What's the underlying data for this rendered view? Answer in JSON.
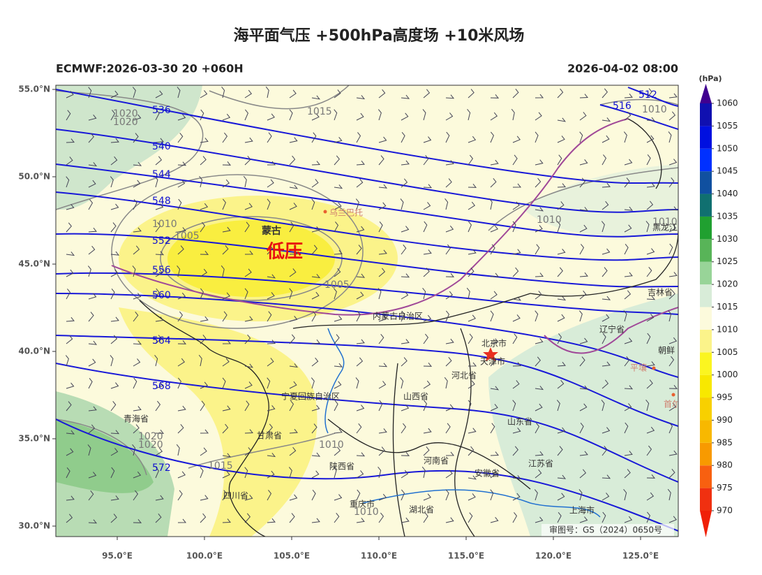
{
  "header": {
    "title": "海平面气压 +500hPa高度场 +10米风场",
    "left": "ECMWF:2026-03-30 20 +060H",
    "right": "2026-04-02 08:00"
  },
  "axes": {
    "xticks": [
      {
        "value": 95,
        "label": "95.0°E"
      },
      {
        "value": 100,
        "label": "100.0°E"
      },
      {
        "value": 105,
        "label": "105.0°E"
      },
      {
        "value": 110,
        "label": "110.0°E"
      },
      {
        "value": 115,
        "label": "115.0°E"
      },
      {
        "value": 120,
        "label": "120.0°E"
      },
      {
        "value": 125,
        "label": "125.0°E"
      }
    ],
    "yticks": [
      {
        "value": 55,
        "label": "55.0°N"
      },
      {
        "value": 50,
        "label": "50.0°N"
      },
      {
        "value": 45,
        "label": "45.0°N"
      },
      {
        "value": 40,
        "label": "40.0°N"
      },
      {
        "value": 35,
        "label": "35.0°N"
      },
      {
        "value": 30,
        "label": "30.0°N"
      }
    ],
    "xlim": [
      91.48,
      127.16
    ],
    "ylim": [
      29.4,
      55.24
    ]
  },
  "colorbar": {
    "unit": "(hPa)",
    "levels": [
      970,
      975,
      980,
      985,
      990,
      995,
      1000,
      1005,
      1010,
      1015,
      1020,
      1025,
      1030,
      1035,
      1040,
      1045,
      1050,
      1055,
      1060
    ],
    "colors": [
      "#f03010",
      "#f86010",
      "#f89a00",
      "#f8b800",
      "#f8d000",
      "#f8e800",
      "#fbf520",
      "#fbf38a",
      "#fcfadc",
      "#d8ecd8",
      "#98d498",
      "#58b458",
      "#20a030",
      "#107070",
      "#1050a0",
      "#0030ff",
      "#0010e0",
      "#1010b0"
    ],
    "under": "#f02008",
    "over": "#400090"
  },
  "annotations": {
    "low": "低压",
    "mongolia": "蒙古",
    "credit": "审图号：GS（2024）0650号"
  },
  "height_labels": [
    "536",
    "540",
    "544",
    "548",
    "552",
    "556",
    "560",
    "564",
    "568",
    "572",
    "516",
    "512"
  ],
  "pressure_labels": [
    "1020",
    "1020",
    "1015",
    "1010",
    "1005",
    "1005",
    "1010",
    "1010",
    "1010",
    "1020",
    "1020",
    "1015",
    "1010",
    "1010"
  ],
  "places": [
    "乌兰巴托",
    "内蒙古自治区",
    "北京市",
    "天津市",
    "河北省",
    "山西省",
    "宁夏回族自治区",
    "甘肃省",
    "青海省",
    "陕西省",
    "四川省",
    "重庆市",
    "湖北省",
    "河南省",
    "安徽省",
    "山东省",
    "江苏省",
    "上海市",
    "辽宁省",
    "吉林省",
    "黑龙江",
    "朝鲜",
    "平壤",
    "首尔"
  ]
}
